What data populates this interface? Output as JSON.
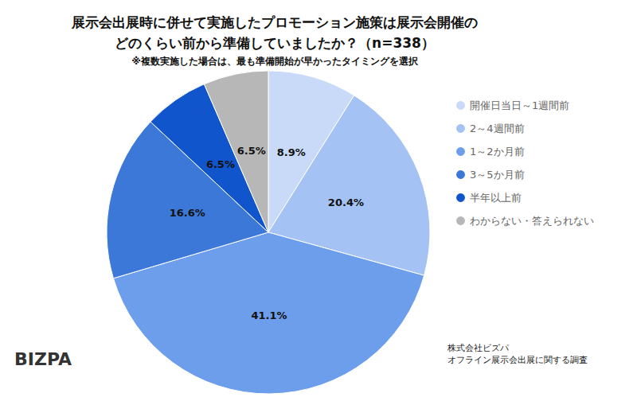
{
  "chart_data": {
    "type": "pie",
    "title": "展示会出展時に併せて実施したプロモーション施策は展示会開催の\nどのくらい前から準備していましたか？（n=338）",
    "subtitle": "※複数実施した場合は、最も準備開始が早かったタイミングを選択",
    "categories": [
      "開催日当日～1週間前",
      "2～4週間前",
      "1～2か月前",
      "3～5か月前",
      "半年以上前",
      "わからない・答えられない"
    ],
    "values": [
      8.9,
      20.4,
      41.1,
      16.6,
      6.5,
      6.5
    ],
    "value_labels": [
      "8.9%",
      "20.4%",
      "41.1%",
      "16.6%",
      "6.5%",
      "6.5%"
    ],
    "colors": [
      "#c9daf8",
      "#a4c2f4",
      "#6d9eeb",
      "#3c78d8",
      "#1155cc",
      "#b7b7b7"
    ],
    "data_labels": true,
    "legend": "right",
    "logo": "BIZPA",
    "source": [
      "株式会社ビズパ",
      "オフライン展示会出展に関する調査"
    ]
  }
}
